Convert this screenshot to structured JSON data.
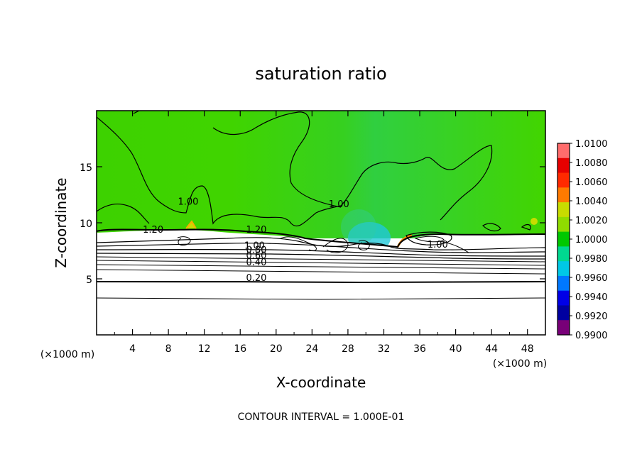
{
  "chart_data": {
    "type": "heatmap",
    "title": "saturation ratio",
    "xlabel": "X-coordinate",
    "ylabel": "Z-coordinate",
    "x_unit": "(×1000 m)",
    "y_unit": "(×1000 m)",
    "xlim": [
      0,
      50
    ],
    "ylim": [
      0,
      20
    ],
    "x_ticks": [
      4,
      8,
      12,
      16,
      20,
      24,
      28,
      32,
      36,
      40,
      44,
      48
    ],
    "y_ticks": [
      5,
      10,
      15
    ],
    "colorbar": {
      "min": 0.99,
      "max": 1.01,
      "labels": [
        "1.0100",
        "1.0080",
        "1.0060",
        "1.0040",
        "1.0020",
        "1.0000",
        "0.9980",
        "0.9960",
        "0.9940",
        "0.9920",
        "0.9900"
      ],
      "colors": [
        "#ff6c6c",
        "#e60000",
        "#ff2a00",
        "#ff7a00",
        "#c8dc00",
        "#90dc00",
        "#00c800",
        "#00d890",
        "#00c8e6",
        "#0078ff",
        "#0000e6",
        "#0000a0",
        "#780078"
      ]
    },
    "contour_labels": [
      {
        "text": "1.20",
        "x": 6.3,
        "y": 9.1
      },
      {
        "text": "1.20",
        "x": 17.8,
        "y": 9.1
      },
      {
        "text": "1.00",
        "x": 10.2,
        "y": 11.6
      },
      {
        "text": "1.00",
        "x": 27.0,
        "y": 11.4
      },
      {
        "text": "1.00",
        "x": 38.0,
        "y": 7.8
      },
      {
        "text": "1.00",
        "x": 17.6,
        "y": 7.7
      },
      {
        "text": "0.80",
        "x": 17.8,
        "y": 7.3
      },
      {
        "text": "0.60",
        "x": 17.8,
        "y": 6.8
      },
      {
        "text": "0.40",
        "x": 17.8,
        "y": 6.2
      },
      {
        "text": "0.20",
        "x": 17.8,
        "y": 4.8
      }
    ],
    "footer": "CONTOUR INTERVAL = 1.000E-01"
  }
}
